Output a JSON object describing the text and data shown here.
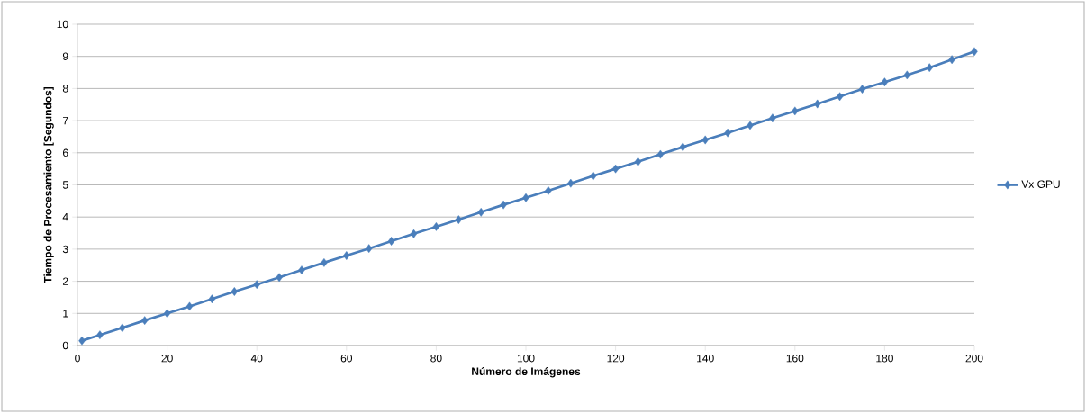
{
  "chart_data": {
    "type": "line",
    "xlabel": "Número de Imágenes",
    "ylabel": "Tiempo de Procesamiento [Segundos]",
    "x": [
      1,
      5,
      10,
      15,
      20,
      25,
      30,
      35,
      40,
      45,
      50,
      55,
      60,
      65,
      70,
      75,
      80,
      85,
      90,
      95,
      100,
      105,
      110,
      115,
      120,
      125,
      130,
      135,
      140,
      145,
      150,
      155,
      160,
      165,
      170,
      175,
      180,
      185,
      190,
      195,
      200
    ],
    "series": [
      {
        "name": "Vx GPU",
        "color": "#4a7ebb",
        "values": [
          0.15,
          0.33,
          0.55,
          0.78,
          1.0,
          1.22,
          1.45,
          1.68,
          1.9,
          2.12,
          2.35,
          2.58,
          2.8,
          3.02,
          3.25,
          3.48,
          3.7,
          3.92,
          4.15,
          4.38,
          4.6,
          4.82,
          5.05,
          5.28,
          5.5,
          5.72,
          5.95,
          6.18,
          6.4,
          6.62,
          6.85,
          7.08,
          7.3,
          7.52,
          7.75,
          7.98,
          8.2,
          8.42,
          8.65,
          8.9,
          9.15
        ]
      }
    ],
    "xlim": [
      0,
      200
    ],
    "xticks": [
      0,
      20,
      40,
      60,
      80,
      100,
      120,
      140,
      160,
      180,
      200
    ],
    "ylim": [
      0,
      10
    ],
    "yticks": [
      0,
      1,
      2,
      3,
      4,
      5,
      6,
      7,
      8,
      9,
      10
    ],
    "grid": "y",
    "legend": "right",
    "marker": "diamond",
    "line_style": "solid"
  }
}
